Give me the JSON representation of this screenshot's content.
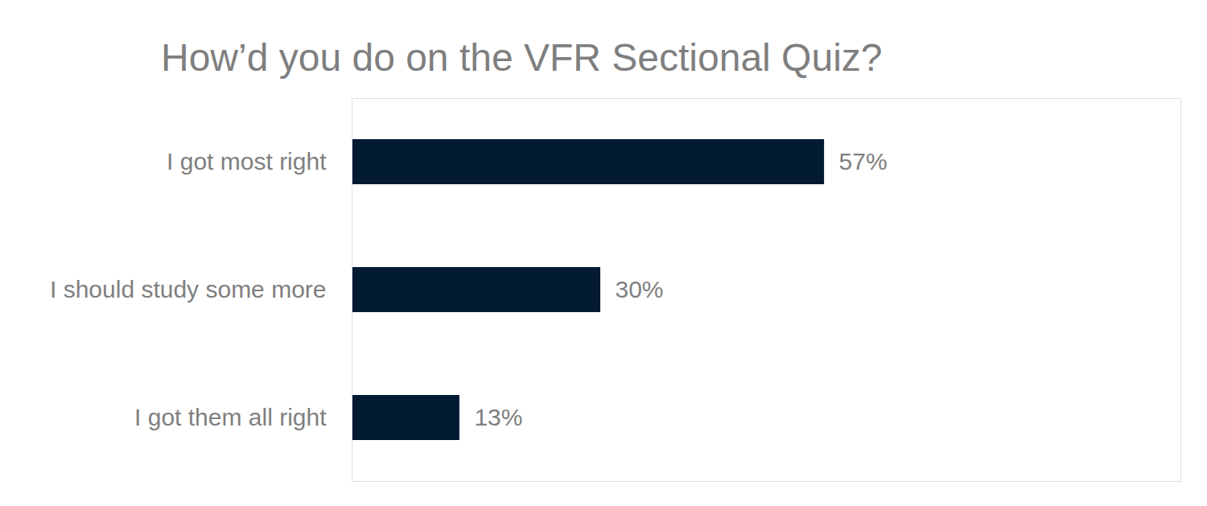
{
  "chart_data": {
    "type": "bar",
    "title": "How’d you do on the VFR Sectional Quiz?",
    "orientation": "horizontal",
    "categories": [
      "I got most right",
      "I should study some more",
      "I got them all right"
    ],
    "values": [
      57,
      30,
      13
    ],
    "value_labels": [
      "57%",
      "30%",
      "13%"
    ],
    "color": "#021b33",
    "xlim": [
      0,
      100
    ],
    "xticks": [],
    "grid": false,
    "data_labels": true,
    "tick_labels": "y"
  }
}
